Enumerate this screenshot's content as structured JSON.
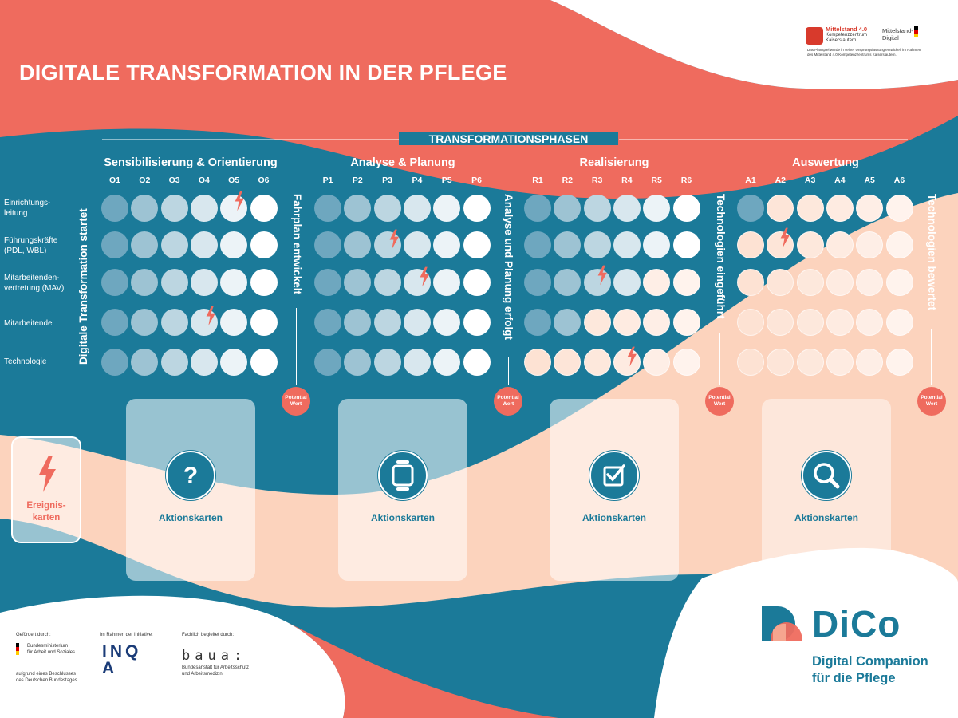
{
  "title": "DIGITALE TRANSFORMATION IN DER PFLEGE",
  "transformation_header": "TRANSFORMATIONSPHASEN",
  "phases": [
    {
      "label": "Sensibilisierung & Orientierung",
      "columns": [
        "O1",
        "O2",
        "O3",
        "O4",
        "O5",
        "O6"
      ],
      "milestone": "Digitale Transformation startet",
      "end_milestone": "Fahrplan entwickelt"
    },
    {
      "label": "Analyse & Planung",
      "columns": [
        "P1",
        "P2",
        "P3",
        "P4",
        "P5",
        "P6"
      ],
      "end_milestone": "Analyse und Planung erfolgt"
    },
    {
      "label": "Realisierung",
      "columns": [
        "R1",
        "R2",
        "R3",
        "R4",
        "R5",
        "R6"
      ],
      "end_milestone": "Technologien eingeführt"
    },
    {
      "label": "Auswertung",
      "columns": [
        "A1",
        "A2",
        "A3",
        "A4",
        "A5",
        "A6"
      ],
      "end_milestone": "Technologien bewertet"
    }
  ],
  "rows": [
    {
      "label": "Einrichtungs-\nleitung"
    },
    {
      "label": "Führungskräfte\n(PDL, WBL)"
    },
    {
      "label": "Mitarbeitenden-\nvertretung (MAV)"
    },
    {
      "label": "Mitarbeitende"
    },
    {
      "label": "Technologie"
    }
  ],
  "potential_badge": {
    "line1": "Potential",
    "line2": "Wert"
  },
  "event_card": {
    "label_line1": "Ereignis-",
    "label_line2": "karten",
    "icon": "lightning-icon"
  },
  "action_cards": [
    {
      "label": "Aktionskarten",
      "icon": "question-icon"
    },
    {
      "label": "Aktionskarten",
      "icon": "device-icon"
    },
    {
      "label": "Aktionskarten",
      "icon": "checkbox-icon"
    },
    {
      "label": "Aktionskarten",
      "icon": "magnifier-icon"
    }
  ],
  "top_logos": {
    "mittelstand": {
      "line1": "Mittelstand 4.0",
      "line2": "Kompetenzzentrum",
      "line3": "Kaiserslautern"
    },
    "mittelstand_digital": {
      "line1": "Mittelstand-",
      "line2": "Digital"
    },
    "caption": "Das Planspiel wurde in seiner Ursprungsfassung entwickelt im Rahmen des Mittelstand 4.0-Kompetenzzentrums Kaiserslautern."
  },
  "footer": {
    "funded_by": "Gefördert durch:",
    "ministry_line1": "Bundesministerium",
    "ministry_line2": "für Arbeit und Soziales",
    "decision_line1": "aufgrund eines Beschlusses",
    "decision_line2": "des Deutschen Bundestages",
    "initiative_label": "Im Rahmen der Initiative:",
    "inqa": "INQA",
    "accompanied_by": "Fachlich begleitet durch:",
    "baua": "baua:",
    "baua_line1": "Bundesanstalt für Arbeitsschutz",
    "baua_line2": "und Arbeitsmedizin"
  },
  "brand": {
    "name": "DiCo",
    "line1": "Digital Companion",
    "line2": "für die Pflege"
  },
  "colors": {
    "teal": "#1b7a99",
    "coral": "#ef6b5e",
    "peach": "#fcd3bd",
    "white": "#ffffff"
  }
}
